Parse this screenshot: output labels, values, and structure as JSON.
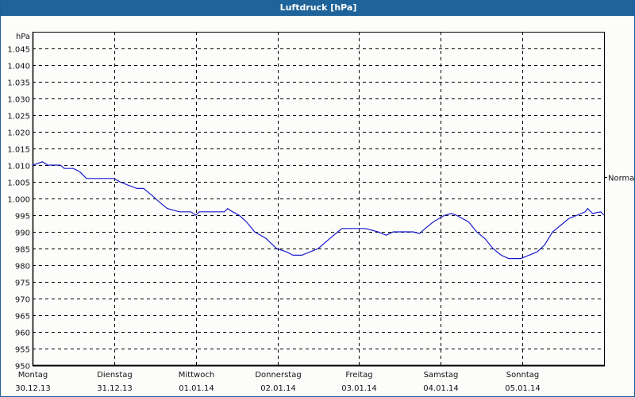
{
  "window": {
    "title": "Luftdruck [hPa]"
  },
  "colors": {
    "titlebar": "#1e6399",
    "line": "#1a1acc",
    "grid": "#000000",
    "background": "#fcfdfb"
  },
  "chart_data": {
    "type": "line",
    "title": "Luftdruck [hPa]",
    "xlabel": "",
    "ylabel": "hPa",
    "ylim": [
      950,
      1045
    ],
    "grid": true,
    "annotation": {
      "label": "Normal",
      "value": 1000
    },
    "y_ticks": [
      "1.045",
      "1.040",
      "1.035",
      "1.030",
      "1.025",
      "1.020",
      "1.015",
      "1.010",
      "1.005",
      "1.000",
      "995",
      "990",
      "985",
      "980",
      "975",
      "970",
      "965",
      "960",
      "955",
      "950"
    ],
    "categories": [
      {
        "day": "Montag",
        "date": "30.12.13"
      },
      {
        "day": "Dienstag",
        "date": "31.12.13"
      },
      {
        "day": "Mittwoch",
        "date": "01.01.14"
      },
      {
        "day": "Donnerstag",
        "date": "02.01.14"
      },
      {
        "day": "Freitag",
        "date": "03.01.14"
      },
      {
        "day": "Samstag",
        "date": "04.01.14"
      },
      {
        "day": "Sonntag",
        "date": "05.01.14"
      }
    ],
    "series": [
      {
        "name": "Luftdruck",
        "x_days": [
          0.0,
          0.12,
          0.19,
          0.34,
          0.39,
          0.5,
          0.58,
          0.66,
          1.0,
          1.07,
          1.17,
          1.28,
          1.36,
          1.46,
          1.55,
          1.65,
          1.8,
          1.94,
          2.0,
          2.04,
          2.35,
          2.39,
          2.45,
          2.53,
          2.62,
          2.72,
          2.86,
          2.99,
          3.11,
          3.19,
          3.3,
          3.4,
          3.5,
          3.64,
          3.74,
          3.79,
          4.08,
          4.23,
          4.33,
          4.42,
          4.66,
          4.74,
          4.81,
          4.91,
          5.05,
          5.13,
          5.19,
          5.34,
          5.44,
          5.54,
          5.64,
          5.74,
          5.83,
          5.98,
          6.08,
          6.18,
          6.27,
          6.37,
          6.47,
          6.57,
          6.67,
          6.77,
          6.8,
          6.86,
          6.96,
          7.0
        ],
        "values": [
          1010,
          1011,
          1010,
          1010,
          1009,
          1009,
          1008,
          1006,
          1006,
          1005,
          1004,
          1003,
          1003,
          1001,
          999,
          997,
          996,
          996,
          995,
          996,
          996,
          997,
          996,
          995,
          993,
          990,
          988,
          985,
          984,
          983,
          983,
          984,
          985,
          988,
          990,
          991,
          991,
          990,
          989,
          990,
          990,
          989.5,
          991,
          993,
          995,
          995.5,
          995,
          993,
          990,
          988,
          985,
          983,
          982,
          982,
          983,
          984,
          986,
          990,
          992,
          994,
          995,
          996,
          997,
          995.5,
          996,
          995
        ]
      }
    ]
  }
}
